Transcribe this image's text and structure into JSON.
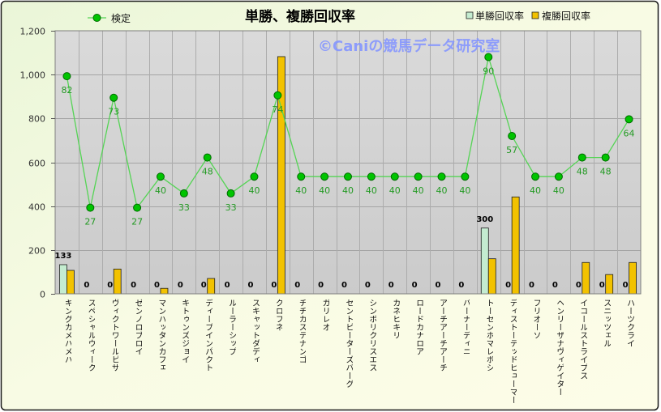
{
  "chart_data": {
    "type": "bar",
    "title": "単勝、複勝回収率",
    "watermark": "©Caniの競馬データ研究室",
    "categories": [
      "キングカメハメハ",
      "スペシャルウィーク",
      "ヴィクトワールピサ",
      "ゼンノロブロイ",
      "マンハッタンカフェ",
      "キトゥンズジョイ",
      "ディープインパクト",
      "ルーラーシップ",
      "スキャットダディ",
      "クロフネ",
      "チチカステナンゴ",
      "ガリレオ",
      "セントピーターズバーグ",
      "シンボリクリスエス",
      "カネヒキリ",
      "ロードカナロア",
      "アーチアーチアーチ",
      "バーナーディニ",
      "トーセンホマレボシ",
      "ディストーテッドヒューマー",
      "フリオーソ",
      "ヘンリーザナヴィゲイター",
      "イコールストライプス",
      "スニッツェル",
      "ハーツクライ"
    ],
    "series": [
      {
        "name": "単勝回収率",
        "type": "bar",
        "color": "#c4ecd0",
        "data_labels": true,
        "values": [
          133,
          0,
          0,
          0,
          0,
          0,
          0,
          0,
          0,
          0,
          0,
          0,
          0,
          0,
          0,
          0,
          0,
          0,
          300,
          0,
          0,
          0,
          0,
          0,
          0
        ]
      },
      {
        "name": "複勝回収率",
        "type": "bar",
        "color": "#f2c200",
        "data_labels": false,
        "values": [
          107,
          0,
          113,
          0,
          25,
          0,
          70,
          0,
          0,
          1082,
          0,
          0,
          0,
          0,
          0,
          0,
          0,
          0,
          160,
          442,
          0,
          0,
          143,
          88,
          143
        ]
      },
      {
        "name": "検定",
        "type": "line",
        "color": "#55d455",
        "marker_color": "#00c400",
        "label_color": "#239a23",
        "data_labels": true,
        "values": [
          82,
          27,
          73,
          27,
          40,
          33,
          48,
          33,
          40,
          74,
          40,
          40,
          40,
          40,
          40,
          40,
          40,
          40,
          90,
          57,
          40,
          40,
          48,
          48,
          64
        ]
      }
    ],
    "ylim": [
      0,
      1200
    ],
    "yticks": [
      {
        "value": 0,
        "label": "0"
      },
      {
        "value": 200,
        "label": "200"
      },
      {
        "value": 400,
        "label": "400"
      },
      {
        "value": 600,
        "label": "600"
      },
      {
        "value": 800,
        "label": "800"
      },
      {
        "value": 1000,
        "label": "1,000"
      },
      {
        "value": 1200,
        "label": "1,200"
      }
    ],
    "grid": true,
    "legend": "top",
    "colors": {
      "gridline": "#a4a4a4",
      "plot_border": "#7f7f7f"
    }
  }
}
